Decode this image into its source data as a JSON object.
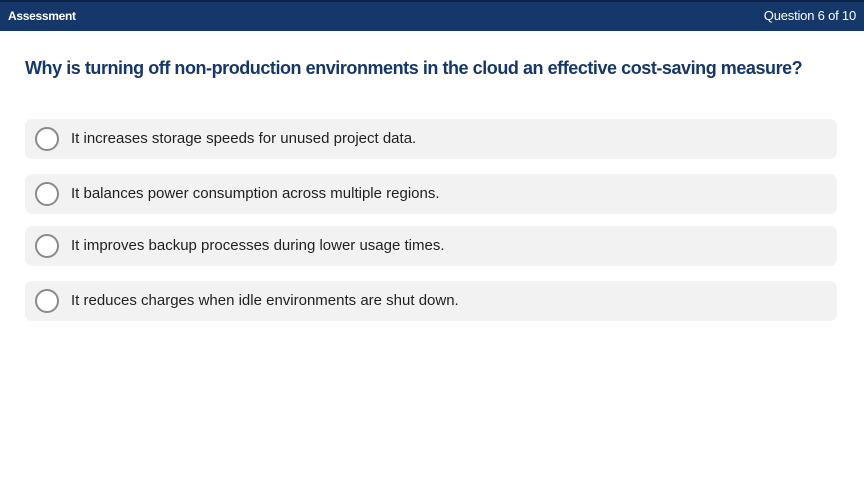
{
  "header": {
    "title": "Assessment",
    "progress": "Question 6 of 10",
    "background_color": "#16376a"
  },
  "question": {
    "text": "Why is turning off non-production environments in the cloud an effective cost-saving measure?",
    "color": "#16376a"
  },
  "options": [
    {
      "label": "It increases storage speeds for unused project data.",
      "icon": "radio-unselected-icon"
    },
    {
      "label": "It balances power consumption across multiple regions.",
      "icon": "radio-unselected-icon"
    },
    {
      "label": "It improves backup processes during lower usage times.",
      "icon": "radio-unselected-icon"
    },
    {
      "label": "It reduces charges when idle environments are shut down.",
      "icon": "radio-unselected-icon"
    }
  ]
}
